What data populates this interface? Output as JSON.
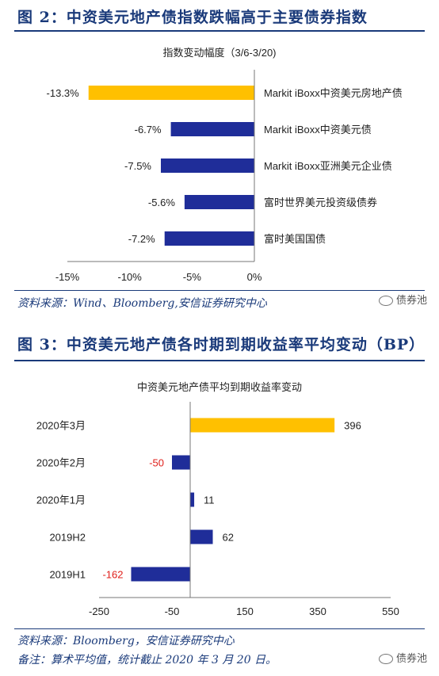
{
  "figure2": {
    "title": "图 2：中资美元地产债指数跌幅高于主要债券指数",
    "source": "资料来源：Wind、Bloomberg,安信证券研究中心"
  },
  "figure3": {
    "title": "图 3：中资美元地产债各时期到期收益率平均变动（BP）",
    "source": "资料来源：Bloomberg，安信证券研究中心",
    "note": "备注：算术平均值，统计截止 2020 年 3 月 20 日。"
  },
  "watermark": "债券池",
  "colors": {
    "highlight": "#FFC000",
    "bar": "#1F2D99",
    "negative_label": "#E0201B",
    "title": "#1a3a7a"
  },
  "chart_data": [
    {
      "type": "bar",
      "orientation": "horizontal",
      "title": "指数变动幅度（3/6-3/20)",
      "categories": [
        "Markit iBoxx中资美元房地产债",
        "Markit iBoxx中资美元债",
        "Markit iBoxx亚洲美元企业债",
        "富时世界美元投资级债券",
        "富时美国国债"
      ],
      "values": [
        -13.3,
        -6.7,
        -7.5,
        -5.6,
        -7.2
      ],
      "value_labels": [
        "-13.3%",
        "-6.7%",
        "-7.5%",
        "-5.6%",
        "-7.2%"
      ],
      "xlim": [
        -15,
        0
      ],
      "xticks": [
        -15,
        -10,
        -5,
        0
      ],
      "xtick_labels": [
        "-15%",
        "-10%",
        "-5%",
        "0%"
      ],
      "grid": false
    },
    {
      "type": "bar",
      "orientation": "horizontal",
      "title": "中资美元地产债平均到期收益率变动",
      "categories": [
        "2020年3月",
        "2020年2月",
        "2020年1月",
        "2019H2",
        "2019H1"
      ],
      "values": [
        396,
        -50,
        11,
        62,
        -162
      ],
      "value_labels": [
        "396",
        "-50",
        "11",
        "62",
        "-162"
      ],
      "xlim": [
        -250,
        550
      ],
      "xticks": [
        -250,
        -50,
        150,
        350,
        550
      ],
      "xtick_labels": [
        "-250",
        "-50",
        "150",
        "350",
        "550"
      ],
      "grid": false
    }
  ]
}
